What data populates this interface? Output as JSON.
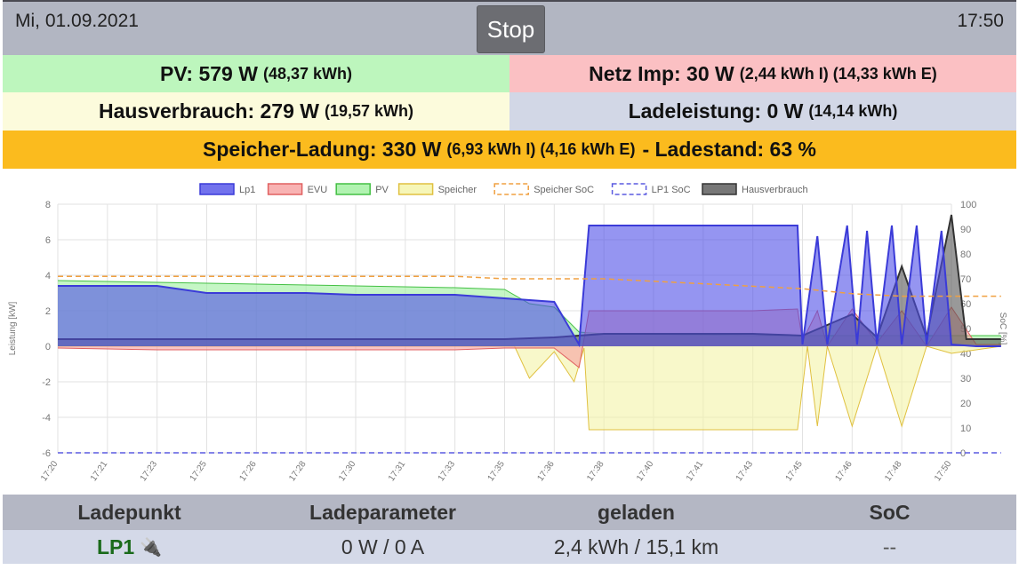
{
  "header": {
    "date": "Mi, 01.09.2021",
    "time": "17:50",
    "stop_label": "Stop"
  },
  "status": {
    "pv_main": "PV: 579 W",
    "pv_sub": "(48,37 kWh)",
    "netz_main": "Netz Imp: 30 W",
    "netz_sub": "(2,44 kWh I) (14,33 kWh E)",
    "haus_main": "Hausverbrauch: 279 W",
    "haus_sub": "(19,57 kWh)",
    "lade_main": "Ladeleistung: 0 W",
    "lade_sub": "(14,14 kWh)",
    "speicher_main": "Speicher-Ladung: 330 W",
    "speicher_sub": "(6,93 kWh I) (4,16 kWh E)",
    "speicher_tail": "- Ladestand: 63 %"
  },
  "colors": {
    "pv": "#bdf6bd",
    "netz": "#fbc0c3",
    "haus": "#fcfbdc",
    "lade": "#d2d7e6",
    "speicher": "#fbbb1e"
  },
  "chart_data": {
    "type": "line",
    "xlabel": "",
    "ylabel": "Leistung [kW]",
    "y2label": "SoC [%]",
    "ylim": [
      -6,
      8
    ],
    "y2lim": [
      0,
      100
    ],
    "yticks": [
      "8",
      "6",
      "4",
      "2",
      "0",
      "-2",
      "-4",
      "-6"
    ],
    "y2ticks": [
      "100",
      "90",
      "80",
      "70",
      "60",
      "50",
      "40",
      "30",
      "20",
      "10",
      "0"
    ],
    "xticks": [
      "17:20",
      "17:21",
      "17:23",
      "17:25",
      "17:26",
      "17:28",
      "17:30",
      "17:31",
      "17:33",
      "17:35",
      "17:36",
      "17:38",
      "17:40",
      "17:41",
      "17:43",
      "17:45",
      "17:46",
      "17:48",
      "17:50"
    ],
    "legend_position": "top",
    "grid": true,
    "series": [
      {
        "name": "Lp1",
        "color": "#3b3bd8",
        "fill": "#4f4fe8",
        "values": [
          [
            0,
            3.4
          ],
          [
            2,
            3.4
          ],
          [
            3,
            3.0
          ],
          [
            5,
            3.0
          ],
          [
            6,
            2.9
          ],
          [
            8,
            2.9
          ],
          [
            9,
            2.7
          ],
          [
            10,
            2.5
          ],
          [
            10.5,
            0.1
          ],
          [
            10.7,
            6.8
          ],
          [
            14,
            6.8
          ],
          [
            14.9,
            6.8
          ],
          [
            15,
            0.1
          ],
          [
            15.3,
            6.2
          ],
          [
            15.5,
            0.1
          ],
          [
            15.9,
            6.8
          ],
          [
            16.1,
            0.1
          ],
          [
            16.3,
            6.5
          ],
          [
            16.5,
            0.1
          ],
          [
            16.8,
            6.8
          ],
          [
            17,
            0.1
          ],
          [
            17.3,
            6.8
          ],
          [
            17.5,
            0.1
          ],
          [
            17.8,
            6.5
          ],
          [
            18,
            0.1
          ],
          [
            18.5,
            0.0
          ],
          [
            19,
            0.0
          ]
        ]
      },
      {
        "name": "EVU",
        "color": "#e06060",
        "fill": "#f6a0a0",
        "values": [
          [
            0,
            -0.1
          ],
          [
            2,
            -0.2
          ],
          [
            4,
            -0.2
          ],
          [
            6,
            -0.2
          ],
          [
            8,
            -0.2
          ],
          [
            9,
            -0.1
          ],
          [
            10,
            -0.1
          ],
          [
            10.5,
            -1.2
          ],
          [
            10.7,
            2.0
          ],
          [
            14,
            2.0
          ],
          [
            14.9,
            2.1
          ],
          [
            15,
            0.3
          ],
          [
            15.3,
            2.0
          ],
          [
            15.5,
            0.0
          ],
          [
            16,
            2.1
          ],
          [
            16.5,
            0.2
          ],
          [
            17,
            2.0
          ],
          [
            17.5,
            0.0
          ],
          [
            18,
            2.2
          ],
          [
            18.5,
            0.1
          ],
          [
            19,
            0.1
          ]
        ]
      },
      {
        "name": "PV",
        "color": "#44c044",
        "fill": "#9ef09e",
        "values": [
          [
            0,
            3.7
          ],
          [
            2,
            3.6
          ],
          [
            4,
            3.5
          ],
          [
            6,
            3.4
          ],
          [
            8,
            3.3
          ],
          [
            9,
            3.2
          ],
          [
            9.5,
            2.4
          ],
          [
            10,
            2.2
          ],
          [
            10.5,
            0.8
          ],
          [
            11,
            0.7
          ],
          [
            14,
            0.6
          ],
          [
            15,
            0.6
          ],
          [
            17,
            0.6
          ],
          [
            19,
            0.6
          ]
        ]
      },
      {
        "name": "Speicher",
        "color": "#e0c040",
        "fill": "#f4f4a6",
        "values": [
          [
            0,
            0.0
          ],
          [
            9.2,
            0.0
          ],
          [
            9.5,
            -1.8
          ],
          [
            10,
            -0.3
          ],
          [
            10.4,
            -2.0
          ],
          [
            10.6,
            -0.1
          ],
          [
            10.7,
            -4.7
          ],
          [
            14.9,
            -4.7
          ],
          [
            15.1,
            0.0
          ],
          [
            15.3,
            -4.5
          ],
          [
            15.5,
            0.0
          ],
          [
            16,
            -4.5
          ],
          [
            16.5,
            0.0
          ],
          [
            17,
            -4.5
          ],
          [
            17.5,
            0.0
          ],
          [
            18,
            -0.4
          ],
          [
            19,
            0.0
          ]
        ]
      },
      {
        "name": "Speicher SoC",
        "color": "#f0a040",
        "dashed": true,
        "values": [
          [
            0,
            71
          ],
          [
            2,
            71
          ],
          [
            4,
            71
          ],
          [
            6,
            71
          ],
          [
            8,
            71
          ],
          [
            9,
            70
          ],
          [
            10,
            70
          ],
          [
            11,
            70
          ],
          [
            12,
            69
          ],
          [
            13,
            68
          ],
          [
            14,
            67
          ],
          [
            15,
            66
          ],
          [
            16,
            64
          ],
          [
            17,
            63
          ],
          [
            18,
            63
          ],
          [
            19,
            63
          ]
        ]
      },
      {
        "name": "LP1 SoC",
        "color": "#5a5ae0",
        "dashed": true,
        "values": [
          [
            0,
            0
          ],
          [
            19,
            0
          ]
        ]
      },
      {
        "name": "Hausverbrauch",
        "color": "#333333",
        "fill": "#555555",
        "values": [
          [
            0,
            0.4
          ],
          [
            2,
            0.4
          ],
          [
            4,
            0.4
          ],
          [
            6,
            0.4
          ],
          [
            8,
            0.4
          ],
          [
            9,
            0.4
          ],
          [
            10,
            0.5
          ],
          [
            10.5,
            0.6
          ],
          [
            11,
            0.7
          ],
          [
            14,
            0.7
          ],
          [
            15,
            0.6
          ],
          [
            16,
            1.8
          ],
          [
            16.5,
            0.5
          ],
          [
            17,
            4.5
          ],
          [
            17.5,
            0.5
          ],
          [
            18,
            7.4
          ],
          [
            18.3,
            0.4
          ],
          [
            19,
            0.4
          ]
        ]
      }
    ]
  },
  "table": {
    "headers": [
      "Ladepunkt",
      "Ladeparameter",
      "geladen",
      "SoC"
    ],
    "row": {
      "lp": "LP1",
      "param": "0 W / 0 A",
      "geladen": "2,4 kWh / 15,1 km",
      "soc": "--"
    }
  }
}
